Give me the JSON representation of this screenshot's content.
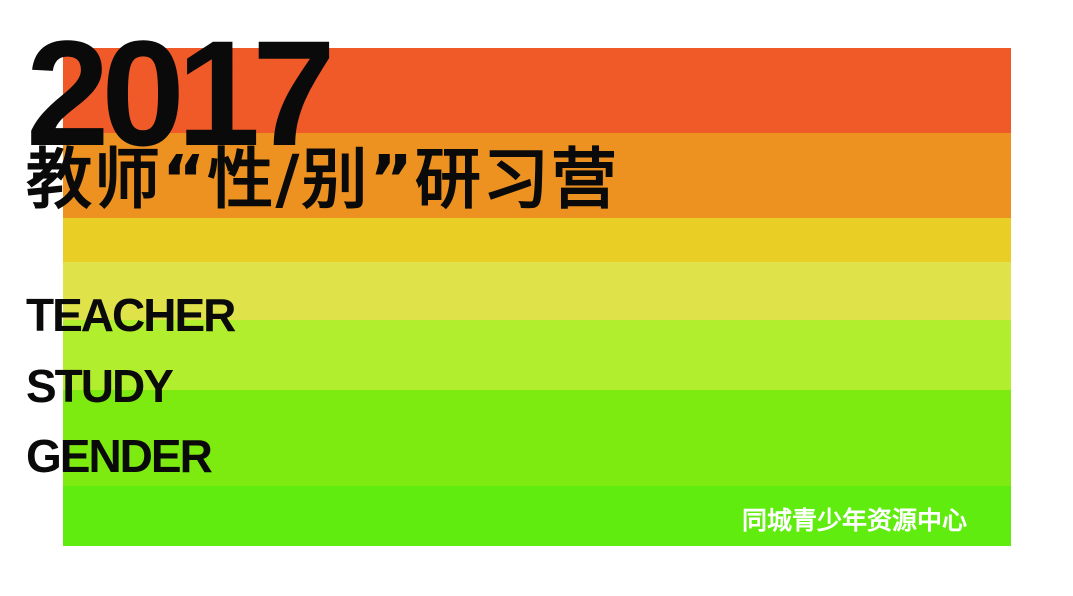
{
  "poster": {
    "year": "2017",
    "title_cn": "教师“性/别”研习营",
    "english_lines": [
      "TEACHER",
      "STUDY",
      "GENDER"
    ],
    "organization": "同城青少年资源中心"
  },
  "stripes": [
    "#F05A28",
    "#ED9221",
    "#E9CE26",
    "#DFE349",
    "#B1EE2E",
    "#7DEB10",
    "#61EC10"
  ],
  "colors": {
    "background": "#FFFFFF",
    "text_dark": "#0A0A0A",
    "text_light": "#FFFFFF"
  }
}
